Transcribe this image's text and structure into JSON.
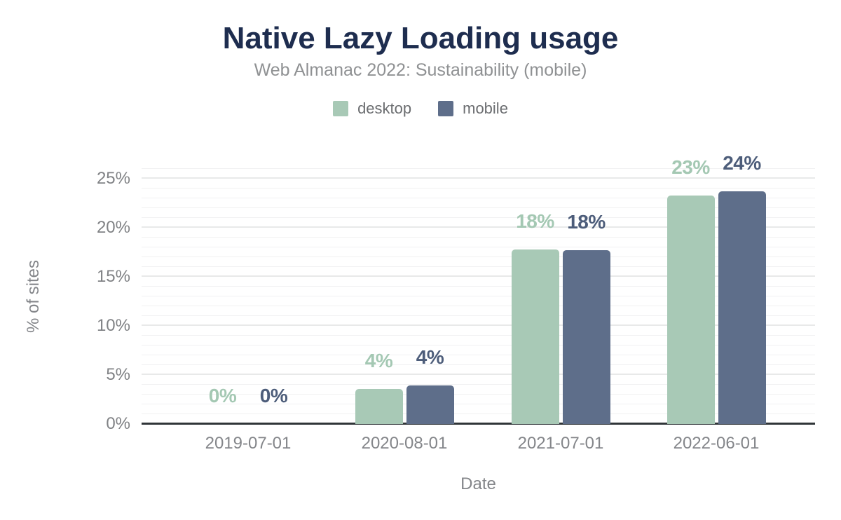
{
  "chart": {
    "title": "Native Lazy Loading usage",
    "subtitle": "Web Almanac 2022: Sustainability (mobile)",
    "xlabel": "Date",
    "ylabel": "% of sites"
  },
  "legend": {
    "items": [
      {
        "label": "desktop",
        "color": "#a8c9b6"
      },
      {
        "label": "mobile",
        "color": "#5e6e8a"
      }
    ]
  },
  "chart_data": {
    "type": "bar",
    "title": "Native Lazy Loading usage",
    "subtitle": "Web Almanac 2022: Sustainability (mobile)",
    "xlabel": "Date",
    "ylabel": "% of sites",
    "categories": [
      "2019-07-01",
      "2020-08-01",
      "2021-07-01",
      "2022-06-01"
    ],
    "series": [
      {
        "name": "desktop",
        "color": "#a8c9b6",
        "label_color": "#a4c8b3",
        "values": [
          0,
          3.6,
          17.8,
          23.3
        ],
        "labels": [
          "0%",
          "4%",
          "18%",
          "23%"
        ]
      },
      {
        "name": "mobile",
        "color": "#5e6e8a",
        "label_color": "#4d5d7a",
        "values": [
          0,
          3.9,
          17.7,
          23.7
        ],
        "labels": [
          "0%",
          "4%",
          "18%",
          "24%"
        ]
      }
    ],
    "ylim": [
      0,
      26
    ],
    "yticks": [
      0,
      5,
      10,
      15,
      20,
      25
    ],
    "ytick_labels": [
      "0%",
      "5%",
      "10%",
      "15%",
      "20%",
      "25%"
    ],
    "minor_grid_step": 1,
    "grid": true,
    "legend_position": "top"
  }
}
